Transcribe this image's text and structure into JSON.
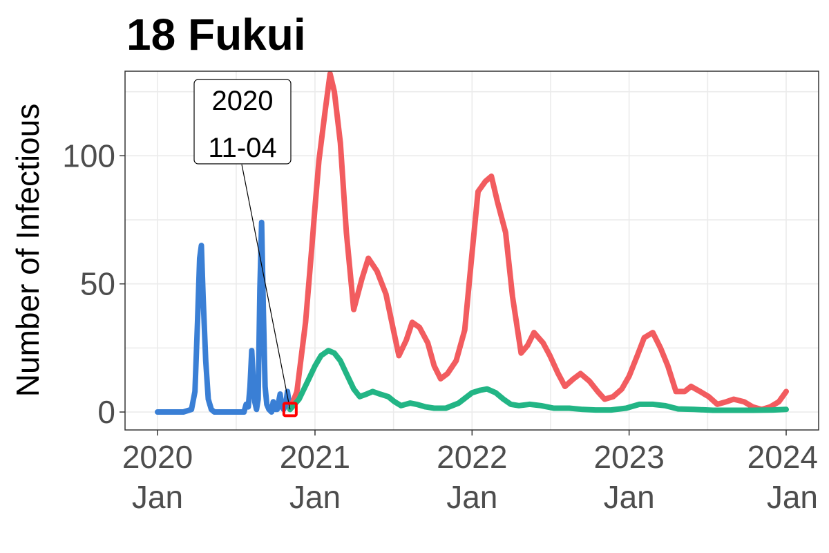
{
  "chart_data": {
    "type": "line",
    "title": "18 Fukui",
    "xlabel": "",
    "ylabel": "Number of Infectious",
    "x_axis": {
      "type": "date",
      "range": [
        "2020-01-01",
        "2024-01-01"
      ],
      "ticks": [
        {
          "date": "2020-01-01",
          "line1": "2020",
          "line2": "Jan"
        },
        {
          "date": "2021-01-01",
          "line1": "2021",
          "line2": "Jan"
        },
        {
          "date": "2022-01-01",
          "line1": "2022",
          "line2": "Jan"
        },
        {
          "date": "2023-01-01",
          "line1": "2023",
          "line2": "Jan"
        },
        {
          "date": "2024-01-01",
          "line1": "2024",
          "line2": "Jan"
        }
      ]
    },
    "y_axis": {
      "range": [
        -7,
        133
      ],
      "ticks": [
        0,
        50,
        100
      ]
    },
    "grid": true,
    "legend": "none",
    "annotation": {
      "date": "2020-11-04",
      "value": 1,
      "line1": "2020",
      "line2": "11-04",
      "marker_color": "#ff0000"
    },
    "series": [
      {
        "color": "#3a7fd5",
        "points": [
          [
            "2020-01-01",
            0
          ],
          [
            "2020-03-01",
            0
          ],
          [
            "2020-03-20",
            1
          ],
          [
            "2020-03-28",
            8
          ],
          [
            "2020-04-03",
            35
          ],
          [
            "2020-04-08",
            60
          ],
          [
            "2020-04-12",
            65
          ],
          [
            "2020-04-16",
            45
          ],
          [
            "2020-04-22",
            20
          ],
          [
            "2020-04-28",
            5
          ],
          [
            "2020-05-05",
            1
          ],
          [
            "2020-05-12",
            0
          ],
          [
            "2020-07-20",
            0
          ],
          [
            "2020-07-25",
            3
          ],
          [
            "2020-07-30",
            2
          ],
          [
            "2020-08-03",
            10
          ],
          [
            "2020-08-07",
            24
          ],
          [
            "2020-08-10",
            14
          ],
          [
            "2020-08-14",
            4
          ],
          [
            "2020-08-18",
            1
          ],
          [
            "2020-08-22",
            5
          ],
          [
            "2020-08-26",
            48
          ],
          [
            "2020-08-30",
            74
          ],
          [
            "2020-09-03",
            40
          ],
          [
            "2020-09-07",
            10
          ],
          [
            "2020-09-11",
            3
          ],
          [
            "2020-09-16",
            1
          ],
          [
            "2020-09-22",
            0
          ],
          [
            "2020-09-26",
            4
          ],
          [
            "2020-10-01",
            1
          ],
          [
            "2020-10-05",
            1
          ],
          [
            "2020-10-12",
            7
          ],
          [
            "2020-10-16",
            2
          ],
          [
            "2020-10-20",
            1
          ],
          [
            "2020-10-25",
            3
          ],
          [
            "2020-10-29",
            8
          ],
          [
            "2020-11-04",
            1
          ]
        ]
      },
      {
        "color": "#f25c5f",
        "points": [
          [
            "2020-11-04",
            1
          ],
          [
            "2020-11-20",
            8
          ],
          [
            "2020-12-10",
            35
          ],
          [
            "2020-12-25",
            65
          ],
          [
            "2021-01-01",
            80
          ],
          [
            "2021-01-10",
            98
          ],
          [
            "2021-01-25",
            118
          ],
          [
            "2021-02-05",
            132
          ],
          [
            "2021-02-15",
            125
          ],
          [
            "2021-03-01",
            105
          ],
          [
            "2021-03-15",
            70
          ],
          [
            "2021-04-01",
            40
          ],
          [
            "2021-04-20",
            52
          ],
          [
            "2021-05-05",
            60
          ],
          [
            "2021-05-25",
            55
          ],
          [
            "2021-06-15",
            46
          ],
          [
            "2021-07-01",
            33
          ],
          [
            "2021-07-15",
            22
          ],
          [
            "2021-08-01",
            28
          ],
          [
            "2021-08-15",
            35
          ],
          [
            "2021-09-01",
            33
          ],
          [
            "2021-09-20",
            27
          ],
          [
            "2021-10-05",
            18
          ],
          [
            "2021-10-20",
            13
          ],
          [
            "2021-11-05",
            15
          ],
          [
            "2021-11-25",
            20
          ],
          [
            "2021-12-15",
            32
          ],
          [
            "2022-01-01",
            62
          ],
          [
            "2022-01-15",
            86
          ],
          [
            "2022-02-01",
            90
          ],
          [
            "2022-02-15",
            92
          ],
          [
            "2022-03-01",
            82
          ],
          [
            "2022-03-20",
            70
          ],
          [
            "2022-04-05",
            45
          ],
          [
            "2022-04-25",
            23
          ],
          [
            "2022-05-10",
            26
          ],
          [
            "2022-05-25",
            31
          ],
          [
            "2022-06-15",
            27
          ],
          [
            "2022-07-01",
            22
          ],
          [
            "2022-07-20",
            15
          ],
          [
            "2022-08-05",
            10
          ],
          [
            "2022-08-25",
            13
          ],
          [
            "2022-09-10",
            15
          ],
          [
            "2022-10-01",
            12
          ],
          [
            "2022-10-20",
            8
          ],
          [
            "2022-11-05",
            5
          ],
          [
            "2022-11-25",
            6
          ],
          [
            "2022-12-15",
            9
          ],
          [
            "2023-01-01",
            14
          ],
          [
            "2023-01-20",
            22
          ],
          [
            "2023-02-05",
            29
          ],
          [
            "2023-02-25",
            31
          ],
          [
            "2023-03-15",
            25
          ],
          [
            "2023-04-01",
            18
          ],
          [
            "2023-04-20",
            8
          ],
          [
            "2023-05-10",
            8
          ],
          [
            "2023-05-25",
            10
          ],
          [
            "2023-06-15",
            8
          ],
          [
            "2023-07-05",
            6
          ],
          [
            "2023-07-25",
            3
          ],
          [
            "2023-08-15",
            4
          ],
          [
            "2023-09-01",
            5
          ],
          [
            "2023-09-25",
            4
          ],
          [
            "2023-10-15",
            2
          ],
          [
            "2023-11-05",
            1
          ],
          [
            "2023-11-25",
            2
          ],
          [
            "2023-12-15",
            4
          ],
          [
            "2024-01-01",
            8
          ]
        ]
      },
      {
        "color": "#22b585",
        "points": [
          [
            "2020-11-04",
            1
          ],
          [
            "2020-11-25",
            5
          ],
          [
            "2020-12-15",
            12
          ],
          [
            "2021-01-01",
            18
          ],
          [
            "2021-01-15",
            22
          ],
          [
            "2021-02-01",
            24
          ],
          [
            "2021-02-15",
            23
          ],
          [
            "2021-03-01",
            20
          ],
          [
            "2021-03-15",
            15
          ],
          [
            "2021-04-01",
            9
          ],
          [
            "2021-04-15",
            6
          ],
          [
            "2021-05-01",
            7
          ],
          [
            "2021-05-15",
            8
          ],
          [
            "2021-06-01",
            7
          ],
          [
            "2021-06-20",
            6
          ],
          [
            "2021-07-05",
            4
          ],
          [
            "2021-07-20",
            2.5
          ],
          [
            "2021-08-10",
            3.5
          ],
          [
            "2021-08-25",
            3
          ],
          [
            "2021-09-15",
            2
          ],
          [
            "2021-10-05",
            1.5
          ],
          [
            "2021-11-01",
            1.5
          ],
          [
            "2021-12-01",
            3.5
          ],
          [
            "2022-01-01",
            7.5
          ],
          [
            "2022-01-20",
            8.5
          ],
          [
            "2022-02-05",
            9
          ],
          [
            "2022-02-25",
            7.5
          ],
          [
            "2022-03-15",
            5
          ],
          [
            "2022-04-01",
            3
          ],
          [
            "2022-04-20",
            2.5
          ],
          [
            "2022-05-15",
            3
          ],
          [
            "2022-06-10",
            2.5
          ],
          [
            "2022-07-10",
            1.5
          ],
          [
            "2022-08-15",
            1.5
          ],
          [
            "2022-09-15",
            1
          ],
          [
            "2022-10-15",
            0.8
          ],
          [
            "2022-11-20",
            0.8
          ],
          [
            "2022-12-25",
            1.5
          ],
          [
            "2023-01-25",
            3
          ],
          [
            "2023-02-25",
            3
          ],
          [
            "2023-03-25",
            2.5
          ],
          [
            "2023-04-25",
            1.2
          ],
          [
            "2023-06-01",
            1
          ],
          [
            "2023-07-15",
            0.7
          ],
          [
            "2023-09-01",
            0.7
          ],
          [
            "2023-10-15",
            0.7
          ],
          [
            "2023-12-01",
            0.8
          ],
          [
            "2024-01-01",
            1
          ]
        ]
      }
    ]
  }
}
